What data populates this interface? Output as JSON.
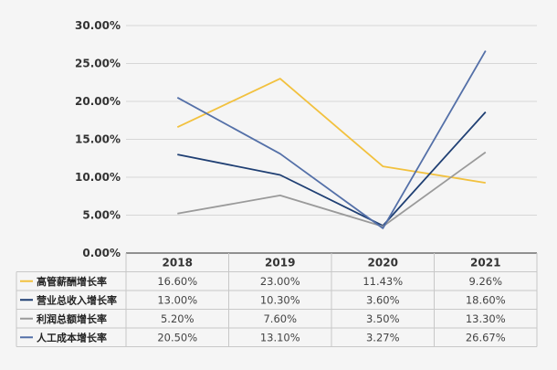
{
  "chart_data": {
    "type": "line",
    "categories": [
      "2018",
      "2019",
      "2020",
      "2021"
    ],
    "ylim": [
      0,
      30
    ],
    "yticks": [
      "0.00%",
      "5.00%",
      "10.00%",
      "15.00%",
      "20.00%",
      "25.00%",
      "30.00%"
    ],
    "grid": true,
    "legend": "table-below",
    "series": [
      {
        "name": "高管薪酬增长率",
        "color": "#f2c13e",
        "values": [
          16.6,
          23.0,
          11.43,
          9.26
        ],
        "labels": [
          "16.60%",
          "23.00%",
          "11.43%",
          "9.26%"
        ]
      },
      {
        "name": "营业总收入增长率",
        "color": "#1f3f73",
        "values": [
          13.0,
          10.3,
          3.6,
          18.6
        ],
        "labels": [
          "13.00%",
          "10.30%",
          "3.60%",
          "18.60%"
        ]
      },
      {
        "name": "利润总额增长率",
        "color": "#9a9a9a",
        "values": [
          5.2,
          7.6,
          3.5,
          13.3
        ],
        "labels": [
          "5.20%",
          "7.60%",
          "3.50%",
          "13.30%"
        ]
      },
      {
        "name": "人工成本增长率",
        "color": "#5470a8",
        "values": [
          20.5,
          13.1,
          3.27,
          26.67
        ],
        "labels": [
          "20.50%",
          "13.10%",
          "3.27%",
          "26.67%"
        ]
      }
    ]
  }
}
